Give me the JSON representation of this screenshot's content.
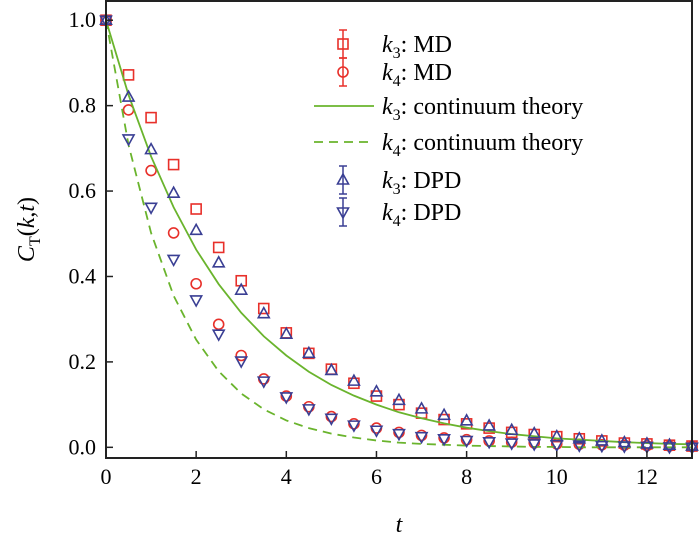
{
  "chart_data": {
    "type": "scatter",
    "xlabel": "t",
    "ylabel": "C_T(k,t)",
    "xlim": [
      0,
      13
    ],
    "ylim": [
      -0.025,
      1.045
    ],
    "xticks": [
      0,
      2,
      4,
      6,
      8,
      10,
      12
    ],
    "yticks": [
      0.0,
      0.2,
      0.4,
      0.6,
      0.8,
      1.0
    ],
    "xtick_labels": [
      "0",
      "2",
      "4",
      "6",
      "8",
      "10",
      "12"
    ],
    "ytick_labels": [
      "0.0",
      "0.2",
      "0.4",
      "0.6",
      "0.8",
      "1.0"
    ],
    "legend_position": "top-right",
    "colors": {
      "md": "#e8302a",
      "dpd": "#3a3f94",
      "theory": "#6ab42d"
    },
    "x": [
      0,
      0.5,
      1,
      1.5,
      2,
      2.5,
      3,
      3.5,
      4,
      4.5,
      5,
      5.5,
      6,
      6.5,
      7,
      7.5,
      8,
      8.5,
      9,
      9.5,
      10,
      10.5,
      11,
      11.5,
      12,
      12.5,
      13
    ],
    "series": [
      {
        "name": "k3: MD",
        "k": "3",
        "label": ": MD",
        "marker": "square",
        "style": "md",
        "values": [
          1.0,
          0.872,
          0.772,
          0.662,
          0.558,
          0.468,
          0.39,
          0.325,
          0.268,
          0.22,
          0.183,
          0.15,
          0.12,
          0.1,
          0.08,
          0.065,
          0.055,
          0.045,
          0.035,
          0.03,
          0.025,
          0.02,
          0.015,
          0.01,
          0.008,
          0.005,
          0.003
        ]
      },
      {
        "name": "k4: MD",
        "k": "4",
        "label": ": MD",
        "marker": "circle",
        "style": "md",
        "values": [
          1.0,
          0.79,
          0.648,
          0.502,
          0.383,
          0.288,
          0.215,
          0.16,
          0.12,
          0.095,
          0.072,
          0.055,
          0.045,
          0.035,
          0.028,
          0.022,
          0.018,
          0.015,
          0.012,
          0.01,
          0.008,
          0.007,
          0.006,
          0.005,
          0.004,
          0.003,
          0.002
        ]
      },
      {
        "name": "k3: continuum theory",
        "k": "3",
        "label": ": continuum theory",
        "marker": "line",
        "style": "theory",
        "dash": false,
        "values": [
          1,
          0.825,
          0.681,
          0.562,
          0.463,
          0.382,
          0.315,
          0.26,
          0.215,
          0.177,
          0.146,
          0.121,
          0.1,
          0.082,
          0.068,
          0.056,
          0.046,
          0.038,
          0.031,
          0.026,
          0.021,
          0.018,
          0.015,
          0.012,
          0.01,
          0.008,
          0.007
        ]
      },
      {
        "name": "k4: continuum theory",
        "k": "4",
        "label": ": continuum theory",
        "marker": "line",
        "style": "theory",
        "dash": true,
        "values": [
          1,
          0.708,
          0.502,
          0.355,
          0.252,
          0.178,
          0.126,
          0.089,
          0.063,
          0.045,
          0.032,
          0.023,
          0.016,
          0.011,
          0.008,
          0.006,
          0.004,
          0.003,
          0.002,
          0.001,
          0.001,
          0.0,
          0.0,
          0.0,
          0.0,
          0.0,
          0.0
        ]
      },
      {
        "name": "k3: DPD",
        "k": "3",
        "label": ": DPD",
        "marker": "triangle-up",
        "style": "dpd",
        "values": [
          1.0,
          0.82,
          0.697,
          0.595,
          0.508,
          0.432,
          0.368,
          0.313,
          0.265,
          0.22,
          0.18,
          0.155,
          0.13,
          0.11,
          0.09,
          0.075,
          0.062,
          0.05,
          0.04,
          0.032,
          0.025,
          0.02,
          0.015,
          0.011,
          0.008,
          0.005,
          0.003
        ]
      },
      {
        "name": "k4: DPD",
        "k": "4",
        "label": ": DPD",
        "marker": "triangle-down",
        "style": "dpd",
        "values": [
          1.0,
          0.722,
          0.562,
          0.44,
          0.345,
          0.265,
          0.202,
          0.155,
          0.118,
          0.09,
          0.068,
          0.052,
          0.04,
          0.032,
          0.025,
          0.02,
          0.016,
          0.013,
          0.01,
          0.008,
          0.006,
          0.005,
          0.004,
          0.003,
          0.002,
          0.001,
          0.0
        ]
      }
    ]
  }
}
